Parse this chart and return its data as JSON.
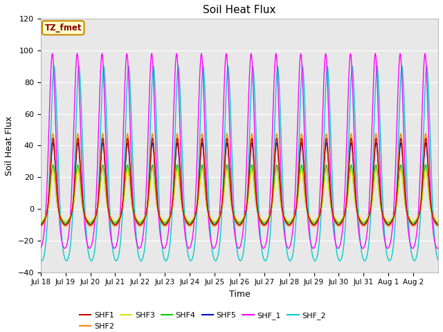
{
  "title": "Soil Heat Flux",
  "xlabel": "Time",
  "ylabel": "Soil Heat Flux",
  "ylim": [
    -40,
    120
  ],
  "xlim_start": 0,
  "xlim_end": 16,
  "yticks": [
    -40,
    -20,
    0,
    20,
    40,
    60,
    80,
    100,
    120
  ],
  "xtick_labels": [
    "Jul 18",
    "Jul 19",
    "Jul 20",
    "Jul 21",
    "Jul 22",
    "Jul 23",
    "Jul 24",
    "Jul 25",
    "Jul 26",
    "Jul 27",
    "Jul 28",
    "Jul 29",
    "Jul 30",
    "Jul 31",
    "Aug 1",
    "Aug 2"
  ],
  "annotation_text": "TZ_fmet",
  "annotation_bg": "#ffffcc",
  "annotation_border": "#cc8800",
  "bg_color": "#e8e8e8",
  "series_colors": {
    "SHF1": "#cc0000",
    "SHF2": "#ff8800",
    "SHF3": "#dddd00",
    "SHF4": "#00cc00",
    "SHF5": "#0000cc",
    "SHF_1": "#ff00ff",
    "SHF_2": "#00cccc"
  },
  "n_days": 16,
  "points_per_day": 200
}
